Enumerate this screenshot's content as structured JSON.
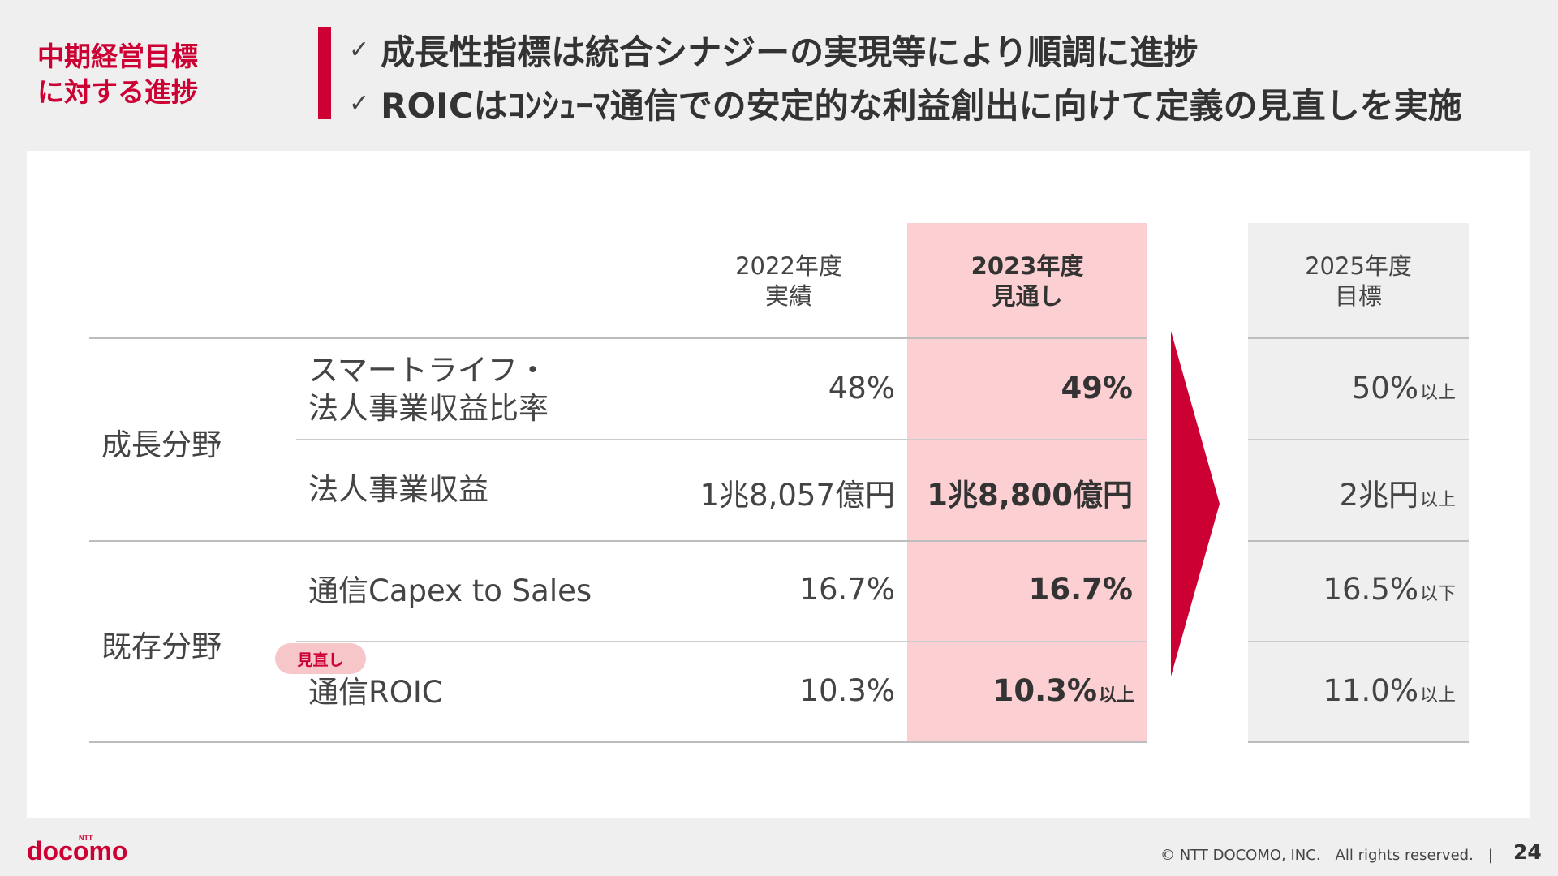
{
  "colors": {
    "accent": "#cc0033",
    "highlight": "#fcd0d2",
    "target_bg": "#efefef"
  },
  "header": {
    "section_label_line1": "中期経営目標",
    "section_label_line2": "に対する進捗",
    "check_icon": "✓",
    "bullets": [
      "成長性指標は統合シナジーの実現等により順調に進捗",
      "ROICはｺﾝｼｭｰﾏ通信での安定的な利益創出に向けて定義の見直しを実施"
    ]
  },
  "table": {
    "columns": [
      {
        "line1": "2022年度",
        "line2": "実績"
      },
      {
        "line1": "2023年度",
        "line2": "見通し"
      },
      {
        "line1": "2025年度",
        "line2": "目標"
      }
    ],
    "groups": [
      {
        "label": "成長分野"
      },
      {
        "label": "既存分野"
      }
    ],
    "rows": [
      {
        "label_line1": "スマートライフ・",
        "label_line2": "法人事業収益比率",
        "fy2022": "48%",
        "fy2023": "49%",
        "fy2023_suffix": "",
        "fy2025": "50%",
        "fy2025_suffix": "以上"
      },
      {
        "label": "法人事業収益",
        "fy2022": "1兆8,057億円",
        "fy2023": "1兆8,800億円",
        "fy2023_suffix": "",
        "fy2025": "2兆円",
        "fy2025_suffix": "以上"
      },
      {
        "label": "通信Capex to Sales",
        "fy2022": "16.7%",
        "fy2023": "16.7%",
        "fy2023_suffix": "",
        "fy2025": "16.5%",
        "fy2025_suffix": "以下"
      },
      {
        "label": "通信ROIC",
        "fy2022": "10.3%",
        "fy2023": "10.3%",
        "fy2023_suffix": "以上",
        "fy2025": "11.0%",
        "fy2025_suffix": "以上"
      }
    ],
    "revision_badge": "見直し"
  },
  "footer": {
    "logo_small": "NTT",
    "logo_text": "docomo",
    "copyright": "© NTT DOCOMO, INC.　All rights reserved.　|",
    "page_number": "24"
  }
}
